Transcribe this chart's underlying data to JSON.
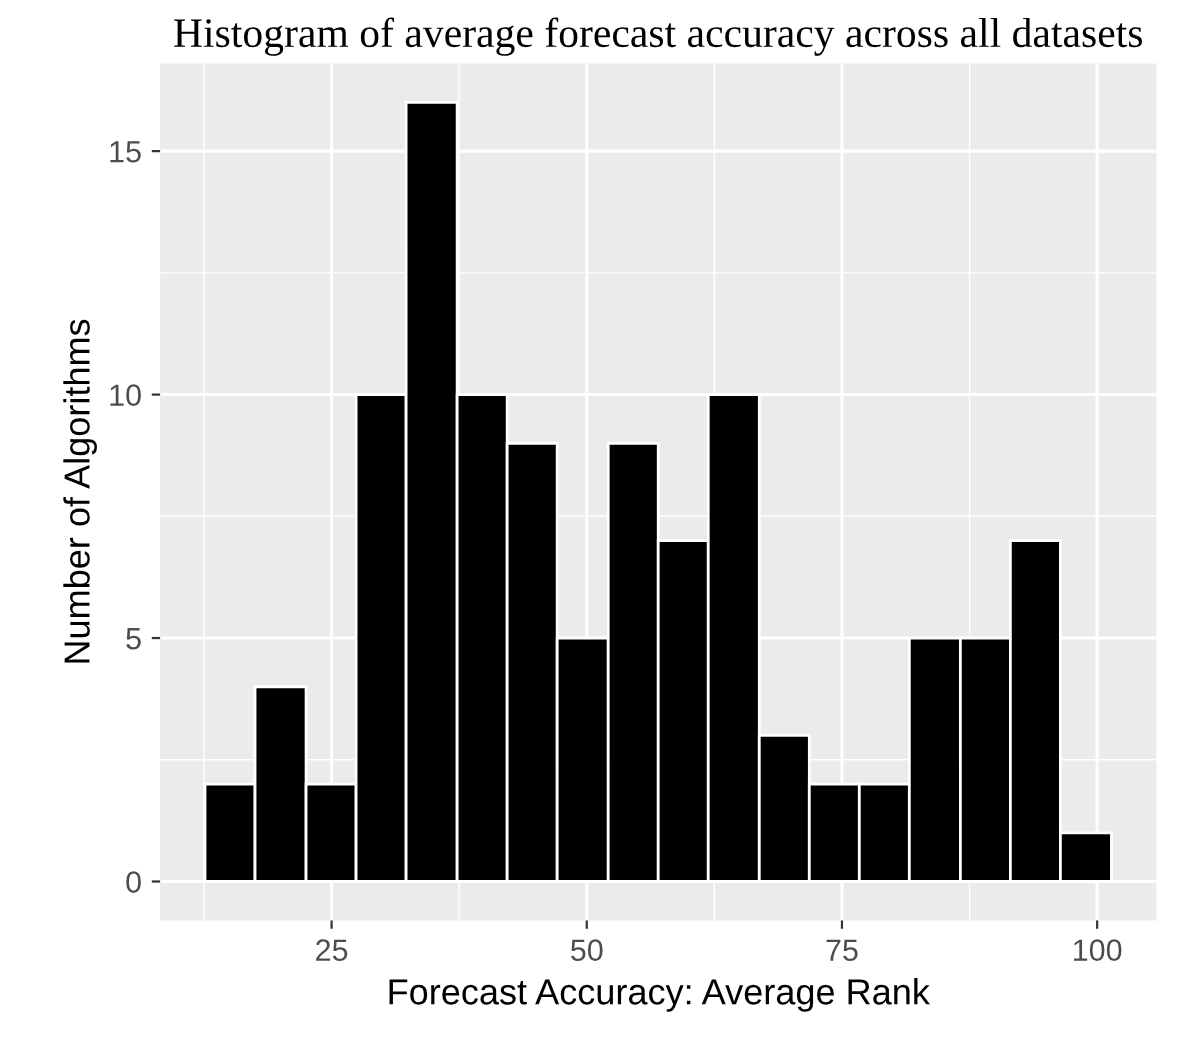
{
  "chart_data": {
    "type": "histogram",
    "title": "Histogram of average forecast accuracy across all datasets",
    "xlabel": "Forecast Accuracy: Average Rank",
    "ylabel": "Number of Algorithms",
    "bins": [
      12.6,
      17.5,
      22.5,
      27.4,
      32.3,
      37.3,
      42.2,
      47.1,
      52.1,
      57.0,
      61.9,
      66.9,
      71.8,
      76.7,
      81.6,
      86.6,
      91.5,
      96.4,
      101.4
    ],
    "values": [
      2,
      4,
      2,
      10,
      16,
      10,
      9,
      5,
      9,
      7,
      10,
      3,
      2,
      2,
      5,
      5,
      7,
      1
    ],
    "color": "#000000",
    "xlim": [
      8.2,
      105.8
    ],
    "ylim": [
      -0.8,
      16.8
    ],
    "xticks": [
      25,
      50,
      75,
      100
    ],
    "yticks": [
      0,
      5,
      10,
      15
    ],
    "grid": true,
    "legend": false
  }
}
